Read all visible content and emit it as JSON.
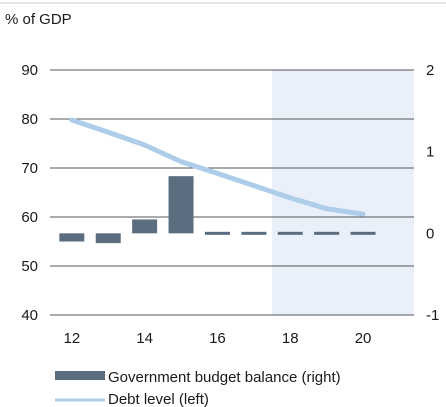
{
  "chart_data": {
    "type": "bar+line",
    "ylabel_left": "% of GDP",
    "x_ticks": [
      "12",
      "14",
      "16",
      "18",
      "20"
    ],
    "x_range": [
      2011.4,
      2021.4
    ],
    "y_left": {
      "range": [
        40,
        90
      ],
      "ticks": [
        "40",
        "50",
        "60",
        "70",
        "80",
        "90"
      ]
    },
    "y_right": {
      "range": [
        -1,
        2
      ],
      "ticks": [
        "-1",
        "0",
        "1",
        "2"
      ]
    },
    "forecast_shade": {
      "from": 2017.5,
      "to": 2021.4,
      "color": "#eaf0fa"
    },
    "colors": {
      "bars": "#5b6e80",
      "line": "#aecde8",
      "grid": "#555555"
    },
    "series": [
      {
        "name": "Government budget balance (right)",
        "type": "bar",
        "axis": "right",
        "x": [
          2012,
          2013,
          2014,
          2015,
          2016,
          2017,
          2018,
          2019,
          2020
        ],
        "values": [
          -0.1,
          -0.12,
          0.17,
          0.7,
          -0.02,
          -0.02,
          -0.02,
          -0.02,
          -0.02
        ],
        "projected_from": 2018
      },
      {
        "name": "Debt level (left)",
        "type": "line",
        "axis": "left",
        "x": [
          2012,
          2013,
          2014,
          2015,
          2016,
          2017,
          2018,
          2019,
          2020
        ],
        "values": [
          79.8,
          77.3,
          74.7,
          71.3,
          68.9,
          66.4,
          63.9,
          61.7,
          60.6
        ]
      }
    ]
  }
}
